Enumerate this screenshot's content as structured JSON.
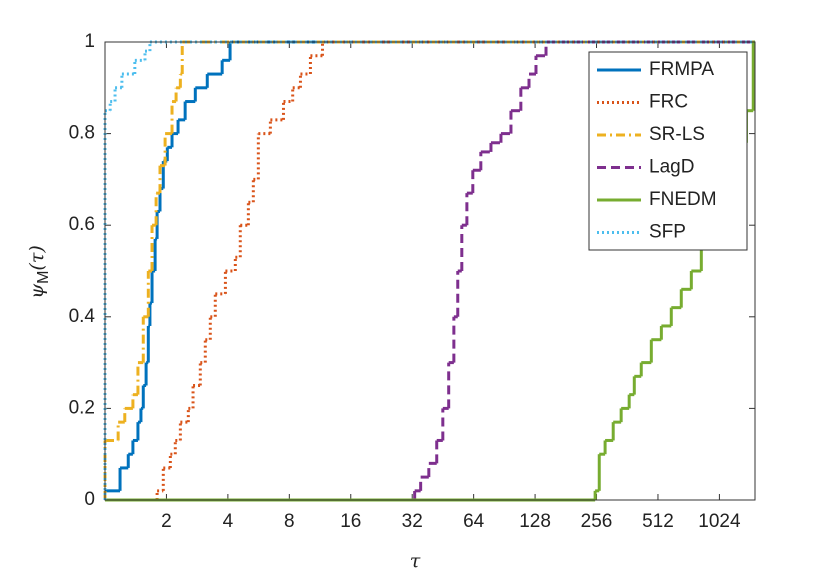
{
  "chart_data": {
    "type": "step",
    "xlabel": "τ",
    "ylabel": {
      "base": "ψ",
      "sub": "M",
      "rest": "(τ)"
    },
    "xscale": "log2",
    "xlim": [
      1,
      1530
    ],
    "ylim": [
      0,
      1
    ],
    "xticks": [
      2,
      4,
      8,
      16,
      32,
      64,
      128,
      256,
      512,
      1024
    ],
    "yticks": [
      0,
      0.2,
      0.4,
      0.6,
      0.8,
      1
    ],
    "legend": "upper right",
    "series": [
      {
        "name": "FRMPA",
        "color": "#0072BD",
        "linestyle": "solid",
        "x": [
          1,
          1.185,
          1.3,
          1.37,
          1.45,
          1.5,
          1.54,
          1.59,
          1.63,
          1.66,
          1.7,
          1.76,
          1.8,
          1.86,
          1.93,
          2.02,
          2.13,
          2.28,
          2.47,
          2.77,
          3.17,
          3.75,
          4.1
        ],
        "values": [
          0.02,
          0.07,
          0.1,
          0.13,
          0.17,
          0.2,
          0.25,
          0.3,
          0.38,
          0.43,
          0.5,
          0.57,
          0.63,
          0.68,
          0.74,
          0.77,
          0.8,
          0.83,
          0.87,
          0.9,
          0.93,
          0.96,
          1
        ]
      },
      {
        "name": "FRC",
        "color": "#D95319",
        "linestyle": "dotted",
        "x": [
          1,
          1.8,
          1.93,
          2.09,
          2.21,
          2.34,
          2.56,
          2.7,
          2.93,
          3.1,
          3.28,
          3.47,
          3.89,
          4.35,
          4.6,
          5.04,
          5.33,
          5.64,
          6.46,
          7.49,
          8.31,
          9.07,
          10.15,
          11.63
        ],
        "values": [
          0,
          0.02,
          0.07,
          0.1,
          0.13,
          0.17,
          0.2,
          0.25,
          0.3,
          0.35,
          0.4,
          0.45,
          0.5,
          0.53,
          0.6,
          0.65,
          0.7,
          0.8,
          0.83,
          0.87,
          0.9,
          0.93,
          0.97,
          1
        ]
      },
      {
        "name": "SR-LS",
        "color": "#EDB120",
        "linestyle": "dashdot",
        "x": [
          1,
          1.16,
          1.25,
          1.37,
          1.45,
          1.54,
          1.63,
          1.7,
          1.78,
          1.86,
          1.97,
          2.13,
          2.23,
          2.34,
          2.39
        ],
        "values": [
          0.13,
          0.17,
          0.2,
          0.23,
          0.3,
          0.4,
          0.5,
          0.6,
          0.67,
          0.73,
          0.8,
          0.87,
          0.9,
          0.93,
          1
        ]
      },
      {
        "name": "LagD",
        "color": "#7E2F8E",
        "linestyle": "dashed",
        "x": [
          1,
          32.9,
          35.2,
          38.6,
          42.2,
          45.2,
          48.3,
          51.2,
          53.5,
          56,
          59.3,
          63.4,
          69.4,
          77.8,
          87.1,
          97.5,
          109,
          119.5,
          129.3,
          144.8
        ],
        "values": [
          0,
          0.02,
          0.05,
          0.08,
          0.13,
          0.2,
          0.3,
          0.4,
          0.5,
          0.6,
          0.67,
          0.72,
          0.76,
          0.78,
          0.8,
          0.85,
          0.9,
          0.93,
          0.97,
          1
        ]
      },
      {
        "name": "FNEDM",
        "color": "#77AC30",
        "linestyle": "solid",
        "x": [
          1,
          252,
          264,
          282,
          309,
          338,
          370,
          392,
          424,
          475,
          532,
          595,
          666,
          746,
          835,
          935,
          1047,
          1172,
          1270,
          1389,
          1500
        ],
        "values": [
          0,
          0.02,
          0.1,
          0.13,
          0.17,
          0.2,
          0.23,
          0.27,
          0.3,
          0.35,
          0.38,
          0.42,
          0.46,
          0.5,
          0.55,
          0.6,
          0.65,
          0.7,
          0.78,
          0.85,
          1
        ]
      },
      {
        "name": "SFP",
        "color": "#4DBEEE",
        "linestyle": "dotted",
        "x": [
          1,
          1.06,
          1.12,
          1.21,
          1.4,
          1.57,
          1.66
        ],
        "values": [
          0.85,
          0.87,
          0.9,
          0.93,
          0.96,
          0.98,
          1
        ]
      }
    ]
  }
}
